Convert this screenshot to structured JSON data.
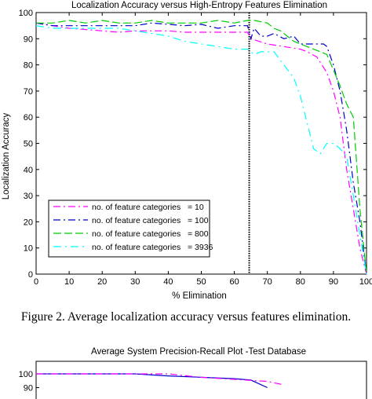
{
  "chart_data": [
    {
      "type": "line",
      "title": "Localization Accuracy versus High-Entropy Features Elimination",
      "xlabel": "% Elimination",
      "ylabel": "Localization Accuracy",
      "xlim": [
        0,
        100
      ],
      "ylim": [
        0,
        100
      ],
      "x_ticks": [
        "0",
        "10",
        "20",
        "30",
        "40",
        "50",
        "60",
        "70",
        "80",
        "90",
        "100"
      ],
      "y_ticks": [
        "0",
        "10",
        "20",
        "30",
        "40",
        "50",
        "60",
        "70",
        "80",
        "90",
        "100"
      ],
      "grid": false,
      "legend_position": "lower-left",
      "annotations": [
        {
          "type": "vertical-line",
          "style": "dotted",
          "x": 64.5
        }
      ],
      "series": [
        {
          "name": "no. of feature categories   = 10",
          "color": "#ff00ff",
          "x": [
            0,
            5,
            10,
            15,
            20,
            25,
            30,
            35,
            40,
            45,
            50,
            55,
            60,
            64,
            65,
            70,
            75,
            80,
            82,
            85,
            88,
            90,
            92,
            94,
            96,
            98,
            100
          ],
          "y": [
            96,
            95,
            94,
            93.5,
            93,
            92.5,
            93,
            93,
            93,
            92.5,
            92.5,
            92.5,
            92.5,
            92.5,
            90,
            88,
            87,
            86,
            85,
            83,
            77,
            70,
            60,
            40,
            25,
            10,
            0
          ]
        },
        {
          "name": "no. of feature categories   = 100",
          "color": "#0000cc",
          "x": [
            0,
            5,
            10,
            15,
            20,
            25,
            30,
            35,
            40,
            45,
            50,
            55,
            60,
            64,
            65,
            66,
            68,
            70,
            72,
            75,
            78,
            80,
            83,
            85,
            87,
            88,
            90,
            92,
            94,
            96,
            98,
            100
          ],
          "y": [
            96,
            95,
            95,
            95,
            95,
            95,
            95,
            96,
            95.5,
            95,
            95.5,
            94,
            95,
            95,
            90,
            94,
            91,
            91,
            92,
            90,
            91,
            88,
            88,
            88,
            88,
            87,
            80,
            70,
            55,
            35,
            20,
            0
          ]
        },
        {
          "name": "no. of feature categories   = 800",
          "color": "#00cc00",
          "x": [
            0,
            5,
            10,
            15,
            20,
            25,
            30,
            35,
            40,
            45,
            50,
            55,
            60,
            64,
            66,
            68,
            70,
            72,
            74,
            76,
            78,
            80,
            82,
            84,
            86,
            88,
            90,
            92,
            94,
            96,
            98,
            100
          ],
          "y": [
            96,
            96,
            97,
            96,
            97,
            96,
            96,
            97,
            96,
            96,
            96,
            97,
            96,
            97,
            97,
            96.5,
            96,
            94,
            93,
            91,
            89,
            88,
            87,
            86,
            85,
            84,
            78,
            72,
            65,
            60,
            25,
            0
          ]
        },
        {
          "name": "no. of feature categories   = 3936",
          "color": "#00ffff",
          "x": [
            0,
            5,
            10,
            15,
            20,
            25,
            30,
            35,
            40,
            45,
            50,
            55,
            60,
            64,
            66,
            68,
            70,
            72,
            75,
            78,
            80,
            82,
            84,
            86,
            88,
            90,
            92,
            94,
            96,
            98,
            100
          ],
          "y": [
            95,
            94,
            94,
            94,
            94,
            94,
            93,
            92,
            91,
            89,
            88,
            87,
            86,
            86,
            84,
            85,
            85,
            85,
            80,
            75,
            68,
            58,
            48,
            46,
            50,
            50,
            48,
            45,
            30,
            15,
            0
          ]
        }
      ]
    },
    {
      "type": "line",
      "title": "Average System Precision-Recall Plot -Test Database",
      "xlabel": "",
      "ylabel": "",
      "y_ticks": [
        "100",
        "90"
      ],
      "series": [
        {
          "color": "#0000cc",
          "x": [
            0,
            10,
            20,
            30,
            40,
            50,
            60,
            65,
            70
          ],
          "y": [
            100,
            100,
            100,
            100,
            98.5,
            97.5,
            96.5,
            95.5,
            90
          ]
        },
        {
          "color": "#ff00ff",
          "x": [
            0,
            10,
            20,
            30,
            40,
            50,
            60,
            70,
            75
          ],
          "y": [
            100,
            100,
            100,
            100,
            100,
            97.5,
            96,
            94.5,
            92
          ]
        }
      ]
    }
  ],
  "caption": "Figure 2.    Average localization accuracy versus features elimination."
}
